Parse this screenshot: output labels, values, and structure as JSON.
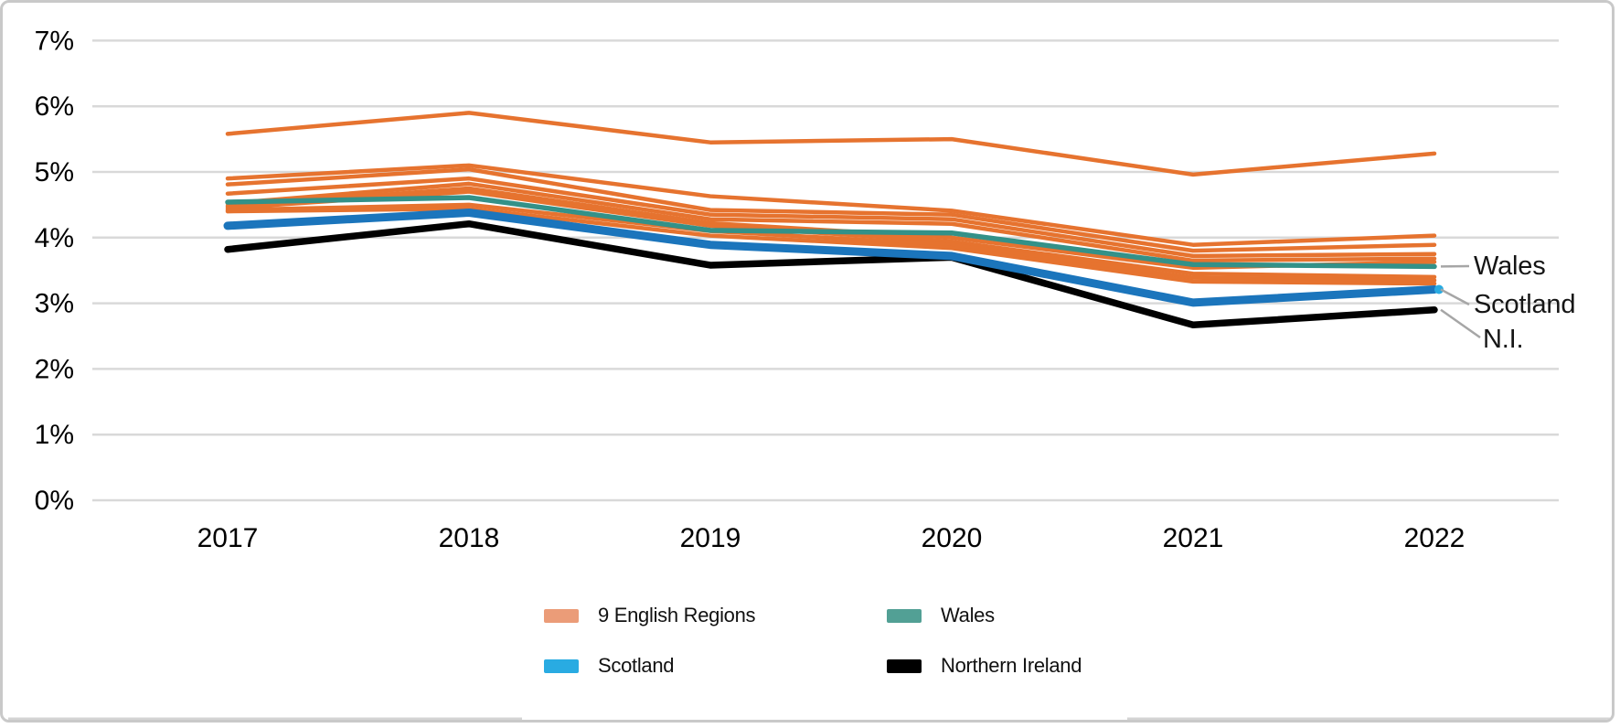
{
  "chart_data": {
    "type": "line",
    "title": "",
    "xlabel": "",
    "ylabel": "",
    "x": [
      "2017",
      "2018",
      "2019",
      "2020",
      "2021",
      "2022"
    ],
    "y_ticks": [
      "0%",
      "1%",
      "2%",
      "3%",
      "4%",
      "5%",
      "6%",
      "7%"
    ],
    "ylim": [
      0,
      7
    ],
    "grid": true,
    "legend_position": "bottom",
    "series": [
      {
        "id": "english-region-1",
        "name": "9 English Regions",
        "color": "#E6732F",
        "width": 4.5,
        "values": [
          5.58,
          5.9,
          5.45,
          5.5,
          4.96,
          5.28
        ]
      },
      {
        "id": "english-region-2",
        "name": "9 English Regions",
        "color": "#E6732F",
        "width": 4.5,
        "values": [
          4.9,
          5.1,
          4.63,
          4.41,
          3.89,
          4.03
        ]
      },
      {
        "id": "english-region-3",
        "name": "9 English Regions",
        "color": "#E6732F",
        "width": 4.5,
        "values": [
          4.81,
          5.04,
          4.42,
          4.35,
          3.8,
          3.89
        ]
      },
      {
        "id": "english-region-4",
        "name": "9 English Regions",
        "color": "#E6732F",
        "width": 4.5,
        "values": [
          4.67,
          4.9,
          4.35,
          4.28,
          3.72,
          3.75
        ]
      },
      {
        "id": "english-region-5",
        "name": "9 English Regions",
        "color": "#E6732F",
        "width": 4.5,
        "values": [
          4.52,
          4.82,
          4.28,
          4.21,
          3.65,
          3.68
        ]
      },
      {
        "id": "english-region-6",
        "name": "9 English Regions",
        "color": "#E6732F",
        "width": 4.5,
        "values": [
          4.48,
          4.75,
          4.22,
          4.0,
          3.54,
          3.63
        ]
      },
      {
        "id": "english-region-7",
        "name": "9 English Regions",
        "color": "#E6732F",
        "width": 4.5,
        "values": [
          4.45,
          4.7,
          4.18,
          3.94,
          3.45,
          3.4
        ]
      },
      {
        "id": "english-region-8",
        "name": "9 English Regions",
        "color": "#E6732F",
        "width": 4.5,
        "values": [
          4.42,
          4.5,
          4.1,
          3.89,
          3.39,
          3.35
        ]
      },
      {
        "id": "english-region-9",
        "name": "9 English Regions",
        "color": "#E6732F",
        "width": 4.5,
        "values": [
          4.4,
          4.44,
          4.03,
          3.84,
          3.33,
          3.3
        ]
      },
      {
        "id": "wales",
        "name": "Wales",
        "color": "#339188",
        "width": 5.5,
        "values": [
          4.54,
          4.61,
          4.11,
          4.07,
          3.59,
          3.56
        ]
      },
      {
        "id": "northern-ireland",
        "name": "Northern Ireland",
        "color": "#000000",
        "width": 7.5,
        "values": [
          3.82,
          4.21,
          3.58,
          3.7,
          2.67,
          2.9
        ]
      },
      {
        "id": "scotland",
        "name": "Scotland",
        "color": "#1B75BC",
        "width": 9,
        "values": [
          4.18,
          4.38,
          3.89,
          3.72,
          3.01,
          3.21
        ],
        "end_dot_color": "#29ABE2"
      }
    ],
    "legend": [
      {
        "label": "9 English Regions",
        "swatch": "#EB9C78"
      },
      {
        "label": "Wales",
        "swatch": "#52A095"
      },
      {
        "label": "Scotland",
        "swatch": "#29ABE2"
      },
      {
        "label": "Northern Ireland",
        "swatch": "#000000"
      }
    ],
    "annotations": [
      {
        "label": "Wales",
        "series": "wales"
      },
      {
        "label": "Scotland",
        "series": "scotland"
      },
      {
        "label": "N.I.",
        "series": "northern-ireland"
      }
    ],
    "colors": {
      "gridline": "#D9D9D9",
      "leader_line": "#A6A6A6",
      "axis_text": "#000000",
      "card_border": "#C9C9C9"
    }
  }
}
